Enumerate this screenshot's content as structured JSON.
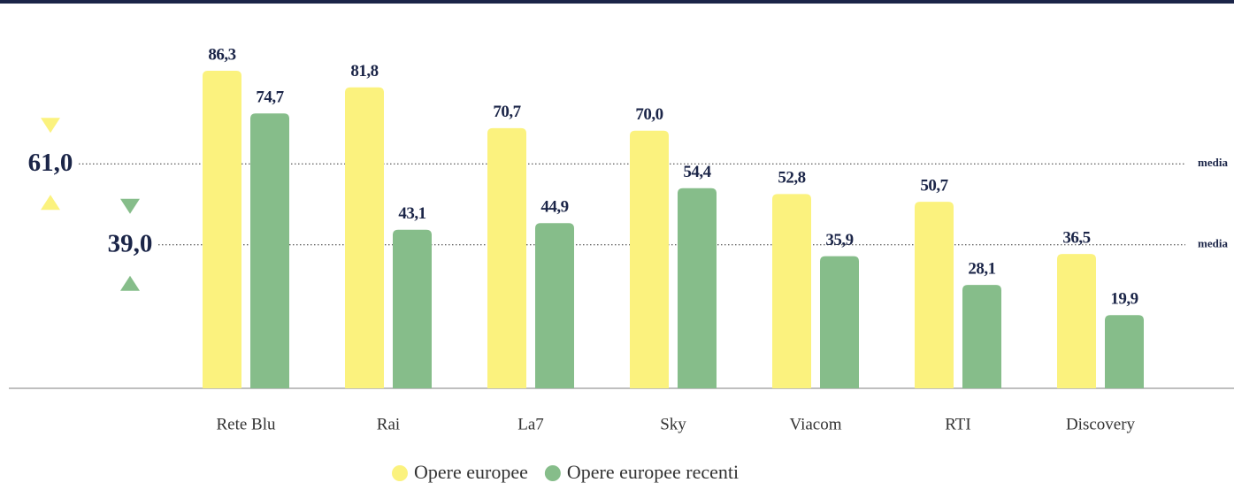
{
  "chart_data": {
    "type": "bar",
    "categories": [
      "Rete Blu",
      "Rai",
      "La7",
      "Sky",
      "Viacom",
      "RTI",
      "Discovery"
    ],
    "series": [
      {
        "name": "Opere europee",
        "color": "#fbf27e",
        "values": [
          86.3,
          81.8,
          70.7,
          70.0,
          52.8,
          50.7,
          36.5
        ],
        "value_labels": [
          "86,3",
          "81,8",
          "70,7",
          "70,0",
          "52,8",
          "50,7",
          "36,5"
        ]
      },
      {
        "name": "Opere europee recenti",
        "color": "#86bd8a",
        "values": [
          74.7,
          43.1,
          44.9,
          54.4,
          35.9,
          28.1,
          19.9
        ],
        "value_labels": [
          "74,7",
          "43,1",
          "44,9",
          "54,4",
          "35,9",
          "28,1",
          "19,9"
        ]
      }
    ],
    "reference_lines": [
      {
        "value": 61.0,
        "label": "61,0",
        "text": "media",
        "color": "#fbf27e"
      },
      {
        "value": 39.0,
        "label": "39,0",
        "text": "media",
        "color": "#86bd8a"
      }
    ],
    "ylim": [
      0,
      100
    ]
  }
}
